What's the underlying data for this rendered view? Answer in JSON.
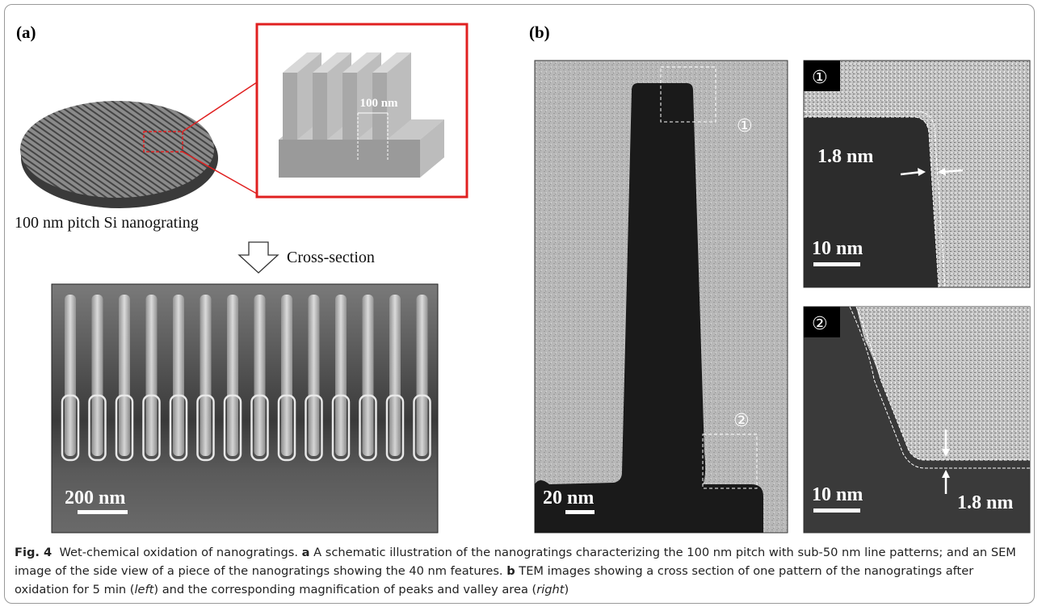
{
  "panel_a": {
    "label": "(a)",
    "schematic_dim": "100 nm",
    "wafer_caption": "100 nm pitch Si nanograting",
    "arrow_label": "Cross-section",
    "sem_scale": "200 nm"
  },
  "panel_b": {
    "label": "(b)",
    "tem_scale": "20 nm",
    "markers": [
      "①",
      "②"
    ],
    "inset_1": {
      "marker": "①",
      "thickness": "1.8 nm",
      "scale": "10 nm"
    },
    "inset_2": {
      "marker": "②",
      "thickness": "1.8 nm",
      "scale": "10 nm"
    }
  },
  "caption": {
    "figure": "Fig. 4",
    "title": "Wet-chemical oxidation of nanogratings.",
    "part_a": {
      "letter": "a",
      "text": "A schematic illustration of the nanogratings characterizing the 100 nm pitch with sub-50 nm line patterns; and an SEM image of the side view of a piece of the nanogratings showing the 40 nm features."
    },
    "part_b": {
      "letter": "b",
      "segments": [
        "TEM images showing a cross section of one pattern of the nanogratings after oxidation for 5 min (",
        "left",
        ") and the corresponding magnification of peaks and valley area (",
        "right",
        ")"
      ]
    }
  }
}
